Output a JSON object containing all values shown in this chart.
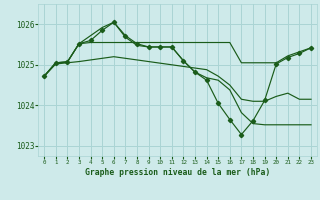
{
  "bg_color": "#ceeaea",
  "grid_color": "#aad4d4",
  "line_color": "#1a5c1a",
  "xlabel": "Graphe pression niveau de la mer (hPa)",
  "ylim": [
    1022.75,
    1026.5
  ],
  "yticks": [
    1023,
    1024,
    1025,
    1026
  ],
  "xlim": [
    -0.5,
    23.5
  ],
  "xticks": [
    0,
    1,
    2,
    3,
    4,
    5,
    6,
    7,
    8,
    9,
    10,
    11,
    12,
    13,
    14,
    15,
    16,
    17,
    18,
    19,
    20,
    21,
    22,
    23
  ],
  "series1_x": [
    0,
    1,
    2,
    3,
    4,
    5,
    6,
    7,
    8,
    9,
    10,
    11,
    12,
    13,
    14,
    15,
    16,
    17,
    18,
    19,
    20,
    21,
    22,
    23
  ],
  "series1_y": [
    1024.72,
    1025.05,
    1025.07,
    1025.52,
    1025.72,
    1025.92,
    1026.05,
    1025.68,
    1025.48,
    1025.44,
    1025.44,
    1025.44,
    1025.1,
    1024.82,
    1024.68,
    1024.62,
    1024.38,
    1023.82,
    1023.55,
    1023.52,
    1023.52,
    1023.52,
    1023.52,
    1023.52
  ],
  "series1_marker": "D",
  "series1_ms": 2.2,
  "series2_x": [
    0,
    1,
    2,
    3,
    4,
    5,
    6,
    7,
    8,
    9,
    10,
    11,
    12,
    13,
    14,
    15,
    16,
    17,
    18,
    19,
    20,
    21,
    22,
    23
  ],
  "series2_y": [
    1024.72,
    1025.05,
    1025.07,
    1025.52,
    1025.6,
    1025.85,
    1026.05,
    1025.72,
    1025.52,
    1025.44,
    1025.44,
    1025.44,
    1025.1,
    1024.82,
    1024.62,
    1024.05,
    1023.65,
    1023.28,
    1023.62,
    1024.12,
    1025.02,
    1025.18,
    1025.28,
    1025.42
  ],
  "series2_marker": "D",
  "series2_ms": 2.2,
  "series3_x": [
    0,
    1,
    2,
    3,
    4,
    5,
    6,
    7,
    8,
    9,
    10,
    11,
    12,
    13,
    14,
    15,
    16,
    17,
    18,
    19,
    20,
    21,
    22,
    23
  ],
  "series3_y": [
    1024.72,
    1025.05,
    1025.07,
    1025.52,
    1025.55,
    1025.55,
    1025.55,
    1025.55,
    1025.55,
    1025.55,
    1025.55,
    1025.55,
    1025.55,
    1025.55,
    1025.55,
    1025.55,
    1025.55,
    1025.05,
    1025.05,
    1025.05,
    1025.05,
    1025.22,
    1025.32,
    1025.42
  ],
  "series4_x": [
    0,
    1,
    2,
    3,
    4,
    5,
    6,
    7,
    8,
    9,
    10,
    11,
    12,
    13,
    14,
    15,
    16,
    17,
    18,
    19,
    20,
    21,
    22,
    23
  ],
  "series4_y": [
    1024.72,
    1025.02,
    1025.05,
    1025.08,
    1025.12,
    1025.16,
    1025.2,
    1025.16,
    1025.12,
    1025.08,
    1025.04,
    1025.0,
    1024.96,
    1024.92,
    1024.88,
    1024.72,
    1024.5,
    1024.15,
    1024.1,
    1024.1,
    1024.22,
    1024.3,
    1024.15,
    1024.15
  ]
}
